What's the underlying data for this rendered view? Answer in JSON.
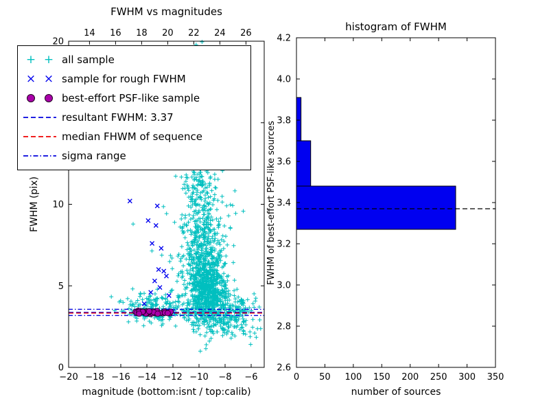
{
  "figure": {
    "background": "#ffffff"
  },
  "chart_data": [
    {
      "type": "scatter",
      "title": "FWHM vs magnitudes",
      "xlabel": "magnitude (bottom:isnt / top:calib)",
      "ylabel": "FWHM (pix)",
      "xlim": [
        -20,
        -5
      ],
      "ylim": [
        0,
        20
      ],
      "x_ticks": {
        "values": [
          -20,
          -18,
          -16,
          -14,
          -12,
          -10,
          -8,
          -6
        ],
        "labels": [
          "−20",
          "−18",
          "−16",
          "−14",
          "−12",
          "−10",
          "−8",
          "−6"
        ]
      },
      "x_ticks_top": {
        "positions": [
          -18.4,
          -16.4,
          -14.4,
          -12.4,
          -10.4,
          -8.4,
          -6.4
        ],
        "labels": [
          "14",
          "16",
          "18",
          "20",
          "22",
          "24",
          "26"
        ]
      },
      "y_ticks": {
        "values": [
          0,
          5,
          10,
          15,
          20
        ],
        "labels": [
          "0",
          "5",
          "10",
          "15",
          "20"
        ]
      },
      "series": [
        {
          "name": "all sample",
          "marker": "+",
          "color": "#00BFBF",
          "clusters": [
            {
              "n": 700,
              "cx": -9.4,
              "cy": 4.6,
              "sx": 0.75,
              "sy": 1.1
            },
            {
              "n": 420,
              "cx": -9.7,
              "cy": 7.2,
              "sx": 0.8,
              "sy": 1.8
            },
            {
              "n": 200,
              "cx": -10.0,
              "cy": 11.5,
              "sx": 0.65,
              "sy": 2.6
            },
            {
              "n": 60,
              "cx": -10.0,
              "cy": 17.0,
              "sx": 0.55,
              "sy": 1.8
            },
            {
              "n": 160,
              "cx": -12.8,
              "cy": 3.6,
              "sx": 1.1,
              "sy": 0.45
            },
            {
              "n": 150,
              "cx": -8.0,
              "cy": 3.4,
              "sx": 1.0,
              "sy": 0.7
            },
            {
              "n": 80,
              "cx": -7.0,
              "cy": 3.2,
              "sx": 0.8,
              "sy": 0.6
            },
            {
              "n": 50,
              "cx": -14.5,
              "cy": 3.6,
              "sx": 0.9,
              "sy": 0.5
            },
            {
              "n": 30,
              "cx": -11.5,
              "cy": 6.5,
              "sx": 1.4,
              "sy": 2.0
            },
            {
              "n": 25,
              "cx": -8.6,
              "cy": 10.5,
              "sx": 0.8,
              "sy": 2.0
            }
          ]
        },
        {
          "name": "sample for rough FWHM",
          "marker": "x",
          "color": "#0000EE",
          "points": [
            [
              -15.3,
              10.2
            ],
            [
              -13.2,
              9.9
            ],
            [
              -13.9,
              9.0
            ],
            [
              -13.3,
              8.7
            ],
            [
              -13.6,
              7.6
            ],
            [
              -12.9,
              7.3
            ],
            [
              -13.1,
              6.0
            ],
            [
              -12.7,
              5.9
            ],
            [
              -12.5,
              5.6
            ],
            [
              -13.4,
              5.3
            ],
            [
              -13.0,
              4.9
            ],
            [
              -13.7,
              4.6
            ],
            [
              -12.3,
              4.4
            ],
            [
              -14.2,
              3.9
            ],
            [
              -14.6,
              3.5
            ],
            [
              -14.3,
              3.4
            ],
            [
              -14.0,
              3.45
            ],
            [
              -13.8,
              3.38
            ],
            [
              -13.5,
              3.5
            ],
            [
              -13.2,
              3.42
            ],
            [
              -12.9,
              3.36
            ],
            [
              -12.6,
              3.44
            ],
            [
              -12.4,
              3.5
            ],
            [
              -12.2,
              3.38
            ],
            [
              -14.8,
              3.42
            ],
            [
              -12.0,
              3.42
            ]
          ]
        },
        {
          "name": "best-effort PSF-like sample",
          "marker": "o",
          "color": "#AA00AA",
          "edge": "#220022",
          "band": {
            "n": 48,
            "x0": -14.9,
            "x1": -12.1,
            "y": 3.38,
            "jitter": 0.05
          }
        }
      ],
      "lines": [
        {
          "name": "resultant FWHM: 3.37",
          "ys": [
            3.37
          ],
          "style": "dashed",
          "color": "#0000DD"
        },
        {
          "name": "median FHWM of sequence",
          "ys": [
            3.33
          ],
          "style": "dashed",
          "color": "#EE0000"
        },
        {
          "name": "sigma range",
          "ys": [
            3.18,
            3.56
          ],
          "style": "dashdot",
          "color": "#0000DD"
        }
      ]
    },
    {
      "type": "bar",
      "orientation": "horizontal",
      "title": "histogram of FWHM",
      "xlabel": "number of sources",
      "ylabel": "FWHM of best-effort PSF-like sources",
      "xlim": [
        0,
        350
      ],
      "ylim": [
        2.6,
        4.2
      ],
      "x_ticks": {
        "values": [
          0,
          50,
          100,
          150,
          200,
          250,
          300,
          350
        ],
        "labels": [
          "0",
          "50",
          "100",
          "150",
          "200",
          "250",
          "300",
          "350"
        ]
      },
      "y_ticks": {
        "values": [
          2.6,
          2.8,
          3.0,
          3.2,
          3.4,
          3.6,
          3.8,
          4.0,
          4.2
        ],
        "labels": [
          "2.6",
          "2.8",
          "3.0",
          "3.2",
          "3.4",
          "3.6",
          "3.8",
          "4.0",
          "4.2"
        ]
      },
      "bar_color": "#0000F0",
      "bar_edge": "#000000",
      "bars": [
        {
          "from": 3.27,
          "to": 3.48,
          "value": 280
        },
        {
          "from": 3.48,
          "to": 3.7,
          "value": 25
        },
        {
          "from": 3.7,
          "to": 3.91,
          "value": 8
        }
      ],
      "dashed_line_y": 3.37,
      "dashed_line_color": "#000000"
    }
  ]
}
